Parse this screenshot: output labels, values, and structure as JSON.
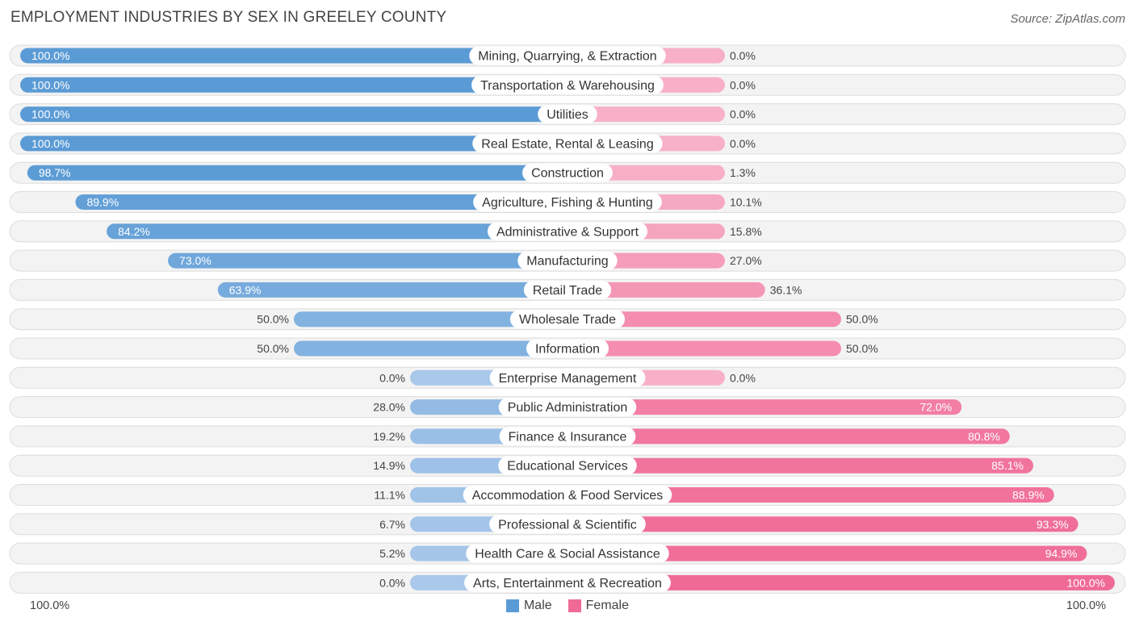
{
  "title": "EMPLOYMENT INDUSTRIES BY SEX IN GREELEY COUNTY",
  "source": "Source: ZipAtlas.com",
  "axis": {
    "left_label": "100.0%",
    "right_label": "100.0%"
  },
  "legend": {
    "male": {
      "label": "Male",
      "color": "#5b9bd5"
    },
    "female": {
      "label": "Female",
      "color": "#f06a96"
    }
  },
  "chart_data": {
    "type": "bar",
    "orientation": "horizontal-diverging",
    "title": "EMPLOYMENT INDUSTRIES BY SEX IN GREELEY COUNTY",
    "categories": [
      "Mining, Quarrying, & Extraction",
      "Transportation & Warehousing",
      "Utilities",
      "Real Estate, Rental & Leasing",
      "Construction",
      "Agriculture, Fishing & Hunting",
      "Administrative & Support",
      "Manufacturing",
      "Retail Trade",
      "Wholesale Trade",
      "Information",
      "Enterprise Management",
      "Public Administration",
      "Finance & Insurance",
      "Educational Services",
      "Accommodation & Food Services",
      "Professional & Scientific",
      "Health Care & Social Assistance",
      "Arts, Entertainment & Recreation"
    ],
    "series": [
      {
        "name": "Male",
        "values": [
          100.0,
          100.0,
          100.0,
          100.0,
          98.7,
          89.9,
          84.2,
          73.0,
          63.9,
          50.0,
          50.0,
          0.0,
          28.0,
          19.2,
          14.9,
          11.1,
          6.7,
          5.2,
          0.0
        ],
        "labels": [
          "100.0%",
          "100.0%",
          "100.0%",
          "100.0%",
          "98.7%",
          "89.9%",
          "84.2%",
          "73.0%",
          "63.9%",
          "50.0%",
          "50.0%",
          "0.0%",
          "28.0%",
          "19.2%",
          "14.9%",
          "11.1%",
          "6.7%",
          "5.2%",
          "0.0%"
        ]
      },
      {
        "name": "Female",
        "values": [
          0.0,
          0.0,
          0.0,
          0.0,
          1.3,
          10.1,
          15.8,
          27.0,
          36.1,
          50.0,
          50.0,
          0.0,
          72.0,
          80.8,
          85.1,
          88.9,
          93.3,
          94.9,
          100.0
        ],
        "labels": [
          "0.0%",
          "0.0%",
          "0.0%",
          "0.0%",
          "1.3%",
          "10.1%",
          "15.8%",
          "27.0%",
          "36.1%",
          "50.0%",
          "50.0%",
          "0.0%",
          "72.0%",
          "80.8%",
          "85.1%",
          "88.9%",
          "93.3%",
          "94.9%",
          "100.0%"
        ]
      }
    ],
    "xlim": [
      -100,
      100
    ],
    "legend_position": "bottom-center"
  }
}
